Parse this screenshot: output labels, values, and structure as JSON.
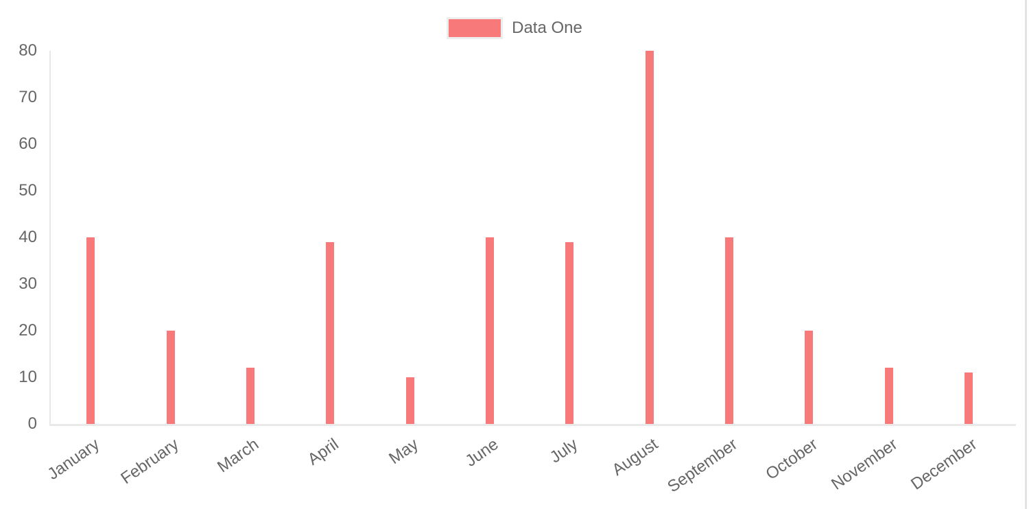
{
  "chart_data": {
    "type": "bar",
    "title": "",
    "categories": [
      "January",
      "February",
      "March",
      "April",
      "May",
      "June",
      "July",
      "August",
      "September",
      "October",
      "November",
      "December"
    ],
    "series": [
      {
        "name": "Data One",
        "color": "#f87979",
        "values": [
          40,
          20,
          12,
          39,
          10,
          40,
          39,
          80,
          40,
          20,
          12,
          11
        ]
      }
    ],
    "xlabel": "",
    "ylabel": "",
    "ylim": [
      0,
      80
    ],
    "yticks": [
      0,
      10,
      20,
      30,
      40,
      50,
      60,
      70,
      80
    ],
    "grid": false,
    "legend_position": "top",
    "text_color": "#666666",
    "axis_line_color": "#e8e8e8"
  }
}
